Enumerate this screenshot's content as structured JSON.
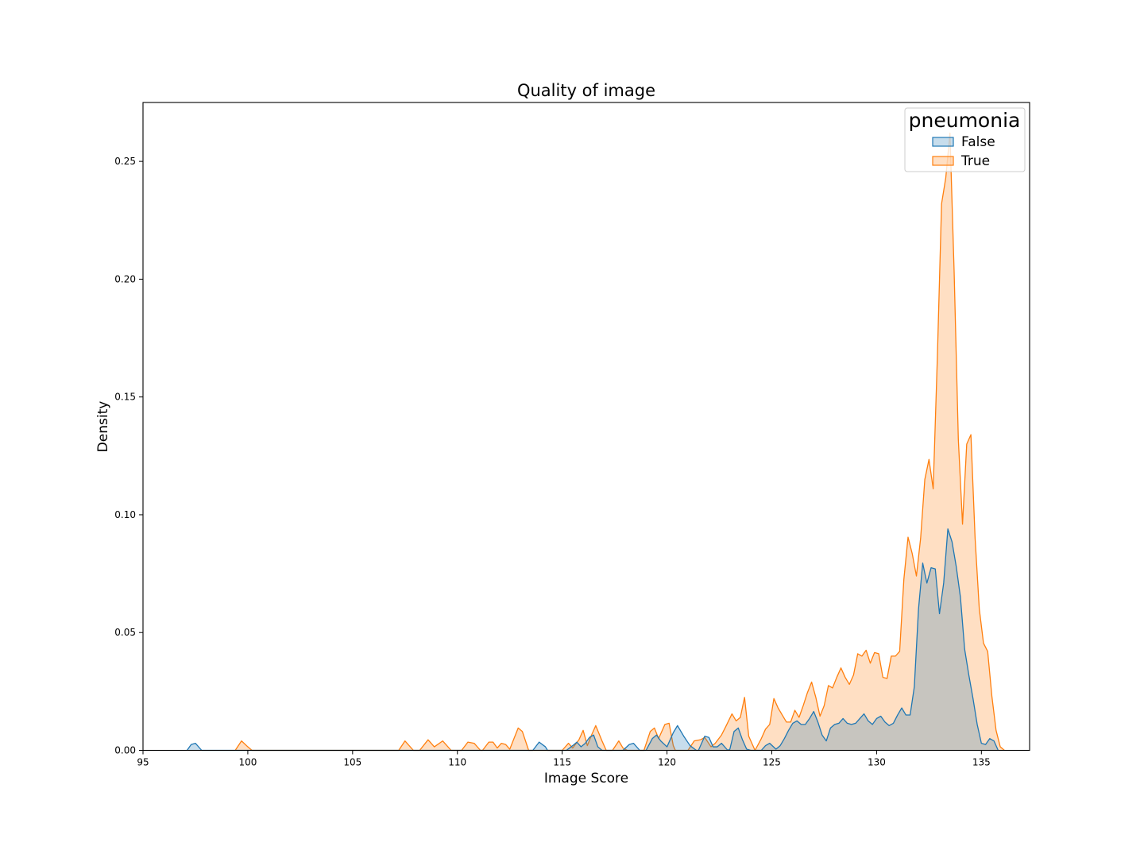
{
  "chart_data": {
    "type": "area",
    "title": "Quality of image",
    "xlabel": "Image Score",
    "ylabel": "Density",
    "xlim": [
      95,
      137.3
    ],
    "ylim": [
      0,
      0.275
    ],
    "xticks": [
      95,
      100,
      105,
      110,
      115,
      120,
      125,
      130,
      135
    ],
    "xtick_labels": [
      "95",
      "100",
      "105",
      "110",
      "115",
      "120",
      "125",
      "130",
      "135"
    ],
    "yticks": [
      0.0,
      0.05,
      0.1,
      0.15,
      0.2,
      0.25
    ],
    "ytick_labels": [
      "0.00",
      "0.05",
      "0.10",
      "0.15",
      "0.20",
      "0.25"
    ],
    "grid": false,
    "legend": {
      "title": "pneumonia",
      "placement": "top-right"
    },
    "series": [
      {
        "name": "True",
        "color": "#ff7f0e",
        "points": [
          [
            99.4,
            0
          ],
          [
            99.7,
            0.004
          ],
          [
            100.0,
            0.0015
          ],
          [
            100.2,
            0
          ],
          [
            107.2,
            0
          ],
          [
            107.5,
            0.004
          ],
          [
            107.9,
            0
          ],
          [
            108.2,
            0
          ],
          [
            108.6,
            0.0045
          ],
          [
            108.9,
            0.0015
          ],
          [
            109.3,
            0.004
          ],
          [
            109.7,
            0
          ],
          [
            110.2,
            0
          ],
          [
            110.5,
            0.0035
          ],
          [
            110.8,
            0.003
          ],
          [
            111.1,
            0
          ],
          [
            111.2,
            0
          ],
          [
            111.5,
            0.0035
          ],
          [
            111.7,
            0.0035
          ],
          [
            111.9,
            0.001
          ],
          [
            112.1,
            0.003
          ],
          [
            112.3,
            0.0025
          ],
          [
            112.5,
            0.0005
          ],
          [
            112.7,
            0.005
          ],
          [
            112.9,
            0.0095
          ],
          [
            113.1,
            0.008
          ],
          [
            113.4,
            0
          ],
          [
            115.0,
            0
          ],
          [
            115.3,
            0.003
          ],
          [
            115.5,
            0.001
          ],
          [
            115.8,
            0.0045
          ],
          [
            116.0,
            0.0085
          ],
          [
            116.2,
            0.002
          ],
          [
            116.4,
            0.0065
          ],
          [
            116.6,
            0.0105
          ],
          [
            116.9,
            0.004
          ],
          [
            117.1,
            0
          ],
          [
            117.4,
            0
          ],
          [
            117.7,
            0.004
          ],
          [
            117.9,
            0.001
          ],
          [
            118.1,
            0
          ],
          [
            118.9,
            0
          ],
          [
            119.2,
            0.008
          ],
          [
            119.4,
            0.0095
          ],
          [
            119.6,
            0.005
          ],
          [
            119.9,
            0.011
          ],
          [
            120.1,
            0.0115
          ],
          [
            120.3,
            0.002
          ],
          [
            120.4,
            0
          ],
          [
            121.0,
            0
          ],
          [
            121.3,
            0.004
          ],
          [
            121.6,
            0.0045
          ],
          [
            121.8,
            0.0055
          ],
          [
            122.1,
            0.0015
          ],
          [
            122.3,
            0.003
          ],
          [
            122.6,
            0.0065
          ],
          [
            122.8,
            0.01
          ],
          [
            123.1,
            0.0155
          ],
          [
            123.3,
            0.0125
          ],
          [
            123.5,
            0.014
          ],
          [
            123.7,
            0.0225
          ],
          [
            123.9,
            0.006
          ],
          [
            124.2,
            0
          ],
          [
            124.5,
            0.005
          ],
          [
            124.7,
            0.009
          ],
          [
            124.9,
            0.011
          ],
          [
            125.1,
            0.022
          ],
          [
            125.3,
            0.018
          ],
          [
            125.5,
            0.015
          ],
          [
            125.7,
            0.012
          ],
          [
            125.9,
            0.012
          ],
          [
            126.1,
            0.017
          ],
          [
            126.3,
            0.014
          ],
          [
            126.5,
            0.019
          ],
          [
            126.7,
            0.0245
          ],
          [
            126.9,
            0.029
          ],
          [
            127.1,
            0.0225
          ],
          [
            127.3,
            0.0145
          ],
          [
            127.5,
            0.019
          ],
          [
            127.7,
            0.0275
          ],
          [
            127.9,
            0.0265
          ],
          [
            128.1,
            0.031
          ],
          [
            128.3,
            0.035
          ],
          [
            128.5,
            0.031
          ],
          [
            128.7,
            0.028
          ],
          [
            128.9,
            0.032
          ],
          [
            129.1,
            0.041
          ],
          [
            129.3,
            0.04
          ],
          [
            129.5,
            0.0425
          ],
          [
            129.7,
            0.037
          ],
          [
            129.9,
            0.0415
          ],
          [
            130.1,
            0.041
          ],
          [
            130.3,
            0.031
          ],
          [
            130.5,
            0.0305
          ],
          [
            130.7,
            0.04
          ],
          [
            130.9,
            0.04
          ],
          [
            131.1,
            0.042
          ],
          [
            131.3,
            0.0725
          ],
          [
            131.5,
            0.0905
          ],
          [
            131.7,
            0.0835
          ],
          [
            131.9,
            0.074
          ],
          [
            132.1,
            0.09
          ],
          [
            132.3,
            0.115
          ],
          [
            132.5,
            0.1235
          ],
          [
            132.7,
            0.111
          ],
          [
            132.9,
            0.167
          ],
          [
            133.1,
            0.232
          ],
          [
            133.3,
            0.243
          ],
          [
            133.5,
            0.262
          ],
          [
            133.7,
            0.203
          ],
          [
            133.9,
            0.132
          ],
          [
            134.1,
            0.096
          ],
          [
            134.3,
            0.13
          ],
          [
            134.5,
            0.134
          ],
          [
            134.7,
            0.09
          ],
          [
            134.9,
            0.06
          ],
          [
            135.1,
            0.0455
          ],
          [
            135.3,
            0.042
          ],
          [
            135.5,
            0.023
          ],
          [
            135.7,
            0.0085
          ],
          [
            135.9,
            0.0015
          ],
          [
            136.1,
            0
          ]
        ]
      },
      {
        "name": "False",
        "color": "#1f77b4",
        "points": [
          [
            97.1,
            0
          ],
          [
            97.3,
            0.0025
          ],
          [
            97.5,
            0.003
          ],
          [
            97.8,
            0
          ],
          [
            113.6,
            0
          ],
          [
            113.9,
            0.0035
          ],
          [
            114.2,
            0.0015
          ],
          [
            114.3,
            0
          ],
          [
            115.2,
            0
          ],
          [
            115.5,
            0.002
          ],
          [
            115.7,
            0.0035
          ],
          [
            115.9,
            0.0015
          ],
          [
            116.1,
            0.003
          ],
          [
            116.3,
            0.0055
          ],
          [
            116.5,
            0.0065
          ],
          [
            116.7,
            0.0015
          ],
          [
            116.9,
            0
          ],
          [
            117.9,
            0
          ],
          [
            118.2,
            0.0025
          ],
          [
            118.4,
            0.003
          ],
          [
            118.7,
            0
          ],
          [
            119.0,
            0
          ],
          [
            119.3,
            0.005
          ],
          [
            119.5,
            0.0065
          ],
          [
            119.7,
            0.004
          ],
          [
            120.0,
            0.0015
          ],
          [
            120.3,
            0.0075
          ],
          [
            120.5,
            0.0105
          ],
          [
            120.8,
            0.006
          ],
          [
            121.1,
            0.002
          ],
          [
            121.4,
            0
          ],
          [
            121.5,
            0
          ],
          [
            121.8,
            0.006
          ],
          [
            122.0,
            0.0055
          ],
          [
            122.2,
            0.0015
          ],
          [
            122.4,
            0.0015
          ],
          [
            122.6,
            0.003
          ],
          [
            122.9,
            0
          ],
          [
            123.0,
            0.0005
          ],
          [
            123.2,
            0.008
          ],
          [
            123.4,
            0.0095
          ],
          [
            123.6,
            0.0045
          ],
          [
            123.8,
            0.0005
          ],
          [
            124.0,
            0
          ],
          [
            124.5,
            0
          ],
          [
            124.7,
            0.002
          ],
          [
            124.9,
            0.003
          ],
          [
            125.2,
            0.0005
          ],
          [
            125.4,
            0.002
          ],
          [
            125.6,
            0.005
          ],
          [
            125.8,
            0.0085
          ],
          [
            126.0,
            0.0115
          ],
          [
            126.2,
            0.0125
          ],
          [
            126.4,
            0.011
          ],
          [
            126.6,
            0.011
          ],
          [
            126.8,
            0.0135
          ],
          [
            127.0,
            0.0165
          ],
          [
            127.2,
            0.012
          ],
          [
            127.4,
            0.0065
          ],
          [
            127.6,
            0.004
          ],
          [
            127.8,
            0.0095
          ],
          [
            128.0,
            0.011
          ],
          [
            128.2,
            0.0115
          ],
          [
            128.4,
            0.0135
          ],
          [
            128.6,
            0.0115
          ],
          [
            128.8,
            0.011
          ],
          [
            129.0,
            0.0115
          ],
          [
            129.2,
            0.0135
          ],
          [
            129.4,
            0.0155
          ],
          [
            129.6,
            0.0125
          ],
          [
            129.8,
            0.011
          ],
          [
            130.0,
            0.0135
          ],
          [
            130.2,
            0.0145
          ],
          [
            130.4,
            0.012
          ],
          [
            130.6,
            0.0105
          ],
          [
            130.8,
            0.0115
          ],
          [
            131.0,
            0.015
          ],
          [
            131.2,
            0.018
          ],
          [
            131.4,
            0.015
          ],
          [
            131.6,
            0.015
          ],
          [
            131.8,
            0.027
          ],
          [
            132.0,
            0.06
          ],
          [
            132.2,
            0.0795
          ],
          [
            132.4,
            0.071
          ],
          [
            132.6,
            0.0775
          ],
          [
            132.8,
            0.077
          ],
          [
            133.0,
            0.058
          ],
          [
            133.2,
            0.071
          ],
          [
            133.4,
            0.094
          ],
          [
            133.6,
            0.0885
          ],
          [
            133.8,
            0.078
          ],
          [
            134.0,
            0.065
          ],
          [
            134.2,
            0.043
          ],
          [
            134.4,
            0.032
          ],
          [
            134.6,
            0.022
          ],
          [
            134.8,
            0.011
          ],
          [
            135.0,
            0.003
          ],
          [
            135.2,
            0.0025
          ],
          [
            135.4,
            0.005
          ],
          [
            135.6,
            0.004
          ],
          [
            135.8,
            0
          ]
        ]
      }
    ]
  }
}
